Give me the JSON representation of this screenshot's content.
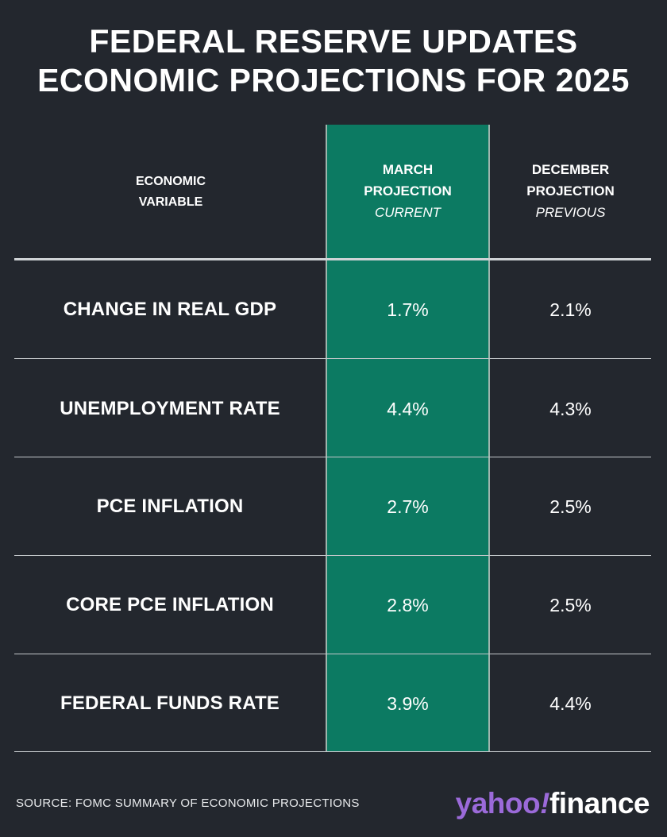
{
  "title": {
    "line1": "FEDERAL RESERVE UPDATES",
    "line2": "ECONOMIC PROJECTIONS FOR 2025"
  },
  "chart_data": {
    "type": "table",
    "columns": [
      {
        "line1": "ECONOMIC",
        "line2": "VARIABLE",
        "sub": ""
      },
      {
        "line1": "MARCH",
        "line2": "PROJECTION",
        "sub": "CURRENT"
      },
      {
        "line1": "DECEMBER",
        "line2": "PROJECTION",
        "sub": "PREVIOUS"
      }
    ],
    "rows": [
      {
        "label": "CHANGE IN REAL GDP",
        "march": "1.7%",
        "december": "2.1%"
      },
      {
        "label": "UNEMPLOYMENT RATE",
        "march": "4.4%",
        "december": "4.3%"
      },
      {
        "label": "PCE INFLATION",
        "march": "2.7%",
        "december": "2.5%"
      },
      {
        "label": "CORE PCE INFLATION",
        "march": "2.8%",
        "december": "2.5%"
      },
      {
        "label": "FEDERAL FUNDS RATE",
        "march": "3.9%",
        "december": "4.4%"
      }
    ]
  },
  "footer": {
    "source": "SOURCE: FOMC SUMMARY OF ECONOMIC PROJECTIONS",
    "logo_yahoo": "yahoo",
    "logo_bang": "!",
    "logo_finance": "finance"
  },
  "colors": {
    "background": "#23272e",
    "highlight": "#0c7a62",
    "brand_purple": "#9b6ad9"
  }
}
